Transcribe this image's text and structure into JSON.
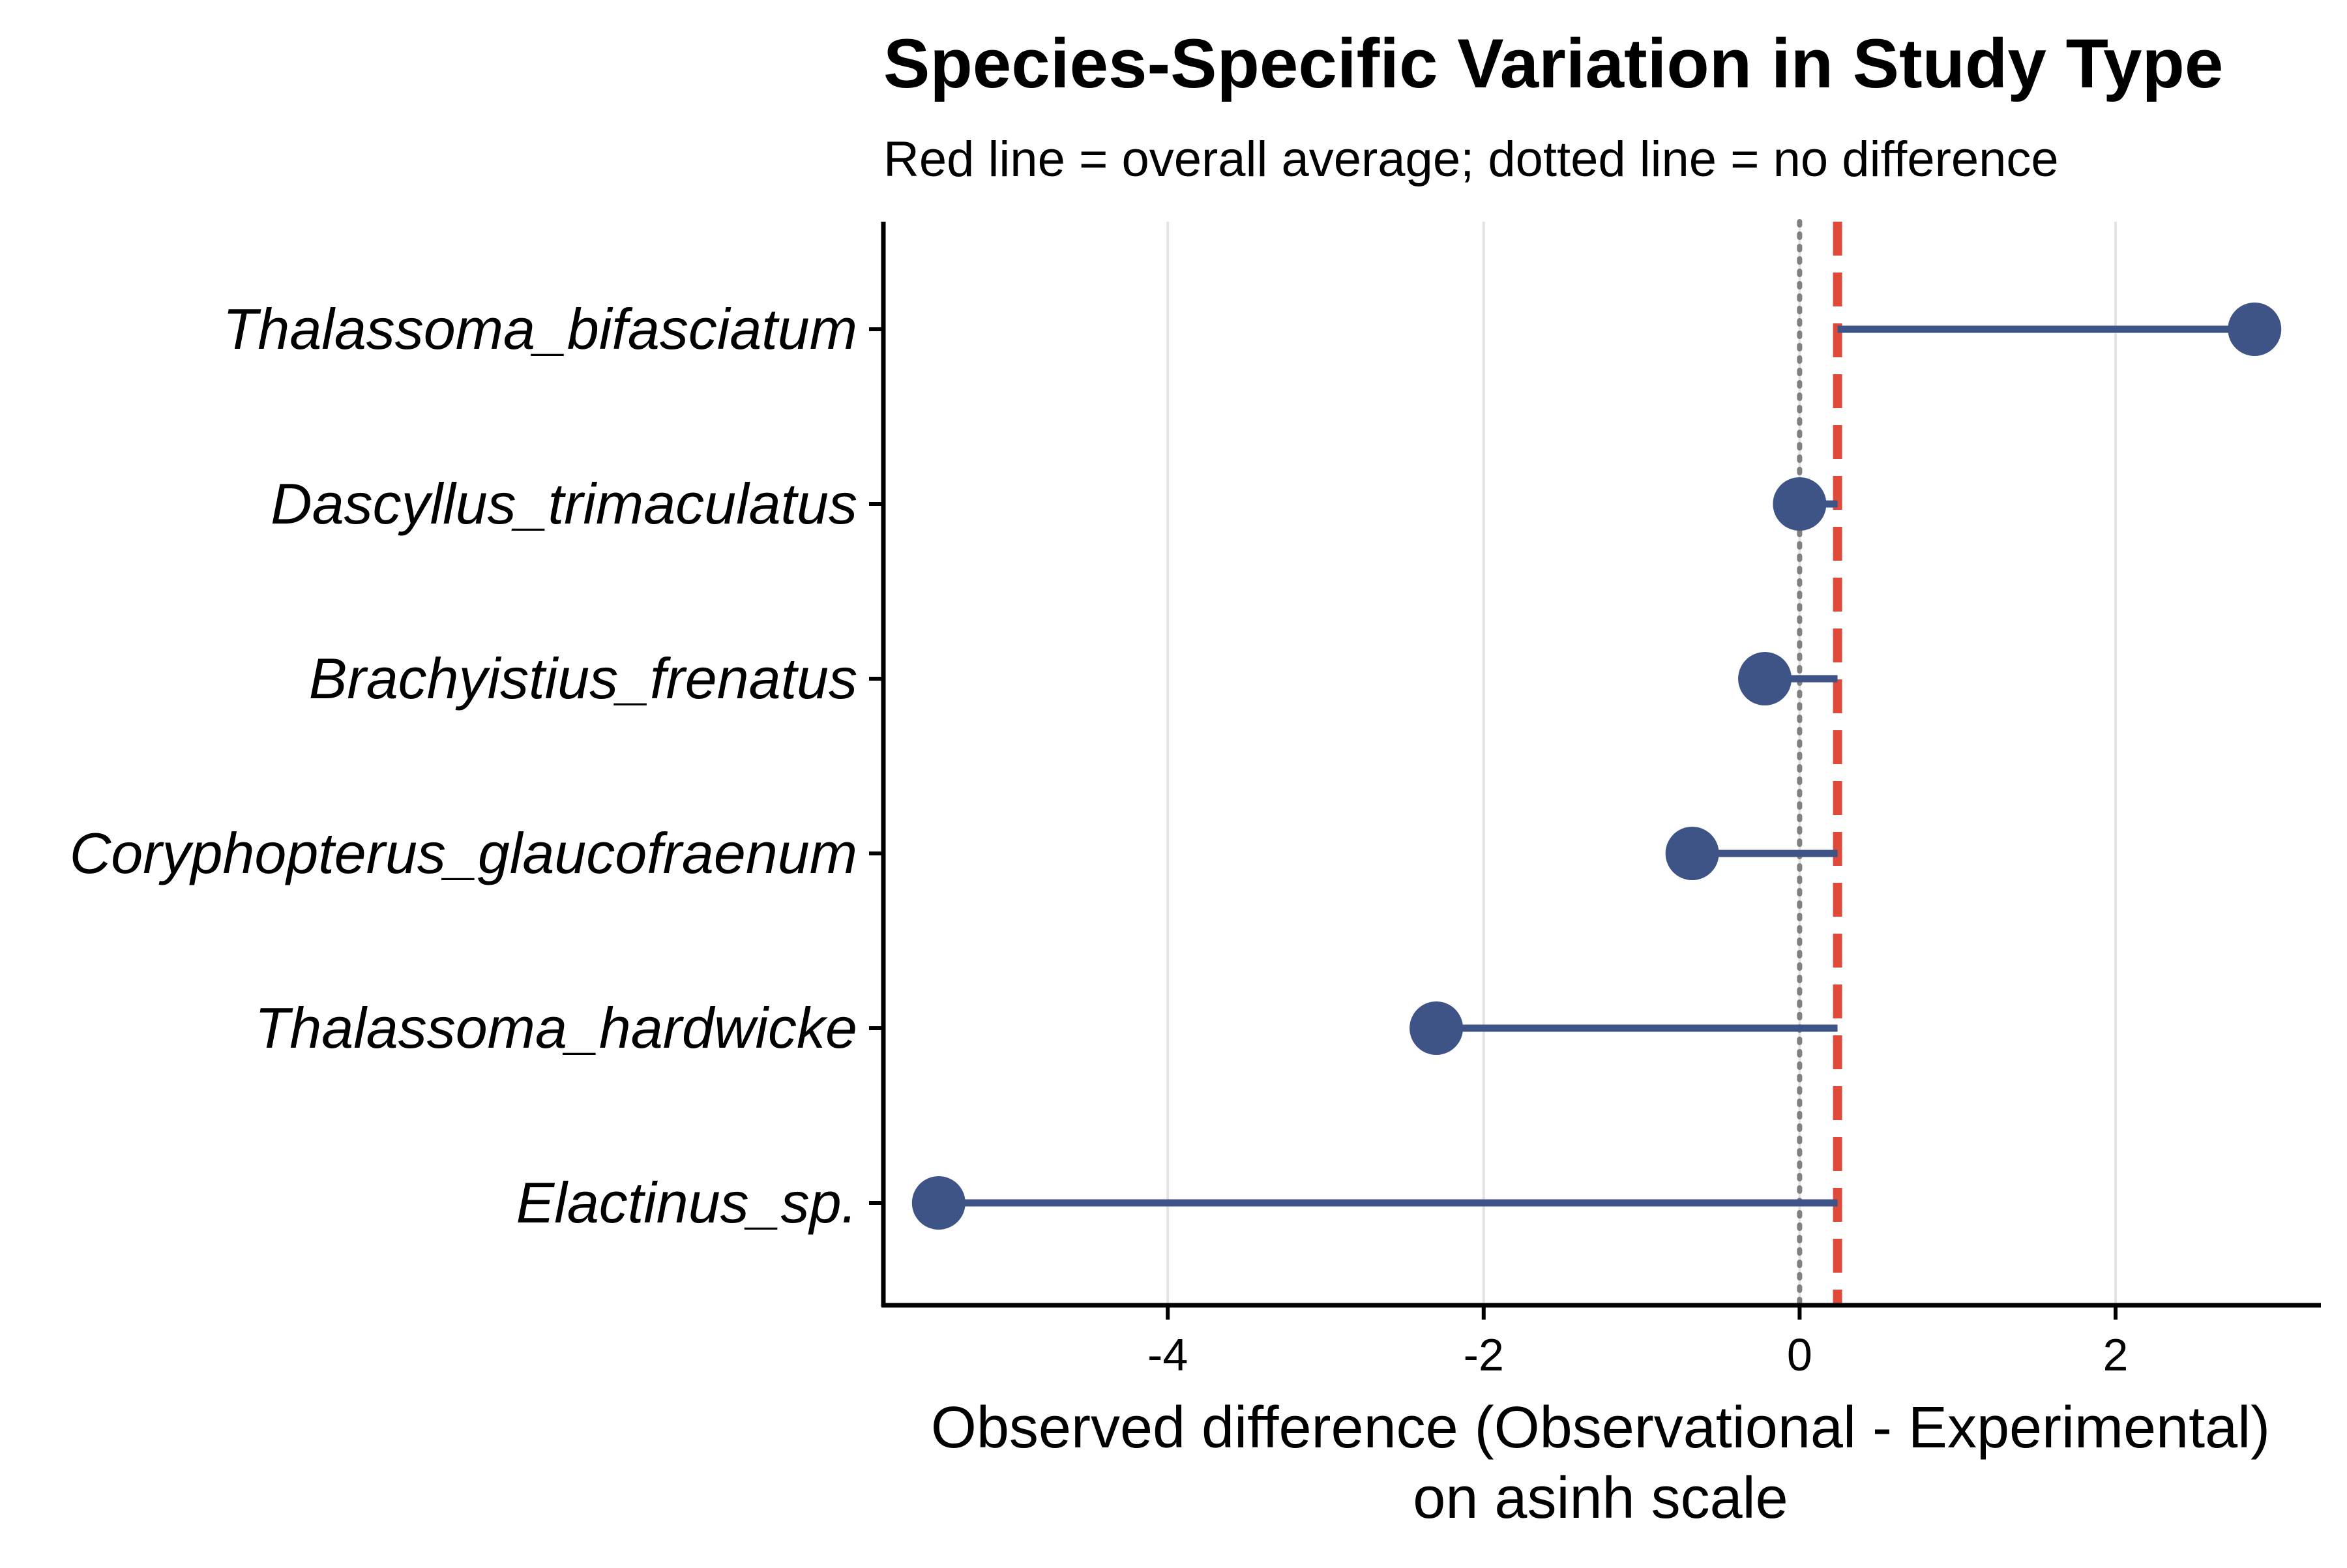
{
  "chart_data": {
    "type": "lollipop",
    "title": "Species-Specific Variation in Study Type",
    "subtitle": "Red line = overall average; dotted line = no difference",
    "xlabel_lines": [
      "Observed difference (Observational - Experimental)",
      "on asinh scale"
    ],
    "ylabel": "",
    "xlim": [
      -5.8,
      3.3
    ],
    "xticks": [
      -4,
      -2,
      0,
      2
    ],
    "xtick_labels": [
      "-4",
      "-2",
      "0",
      "2"
    ],
    "reference_lines": {
      "no_difference": 0,
      "overall_average": 0.24
    },
    "categories": [
      "Thalassoma_bifasciatum",
      "Dascyllus_trimaculatus",
      "Brachyistius_frenatus",
      "Coryphopterus_glaucofraenum",
      "Thalassoma_hardwicke",
      "Elactinus_sp."
    ],
    "values": [
      2.88,
      0.0,
      -0.22,
      -0.68,
      -2.3,
      -5.45
    ],
    "grid": "vertical major",
    "colors": {
      "points": "#3e5487",
      "average_line": "#e04a3a",
      "zero_line": "#808080",
      "grid": "#e3e3e3",
      "axis": "#000000"
    }
  }
}
